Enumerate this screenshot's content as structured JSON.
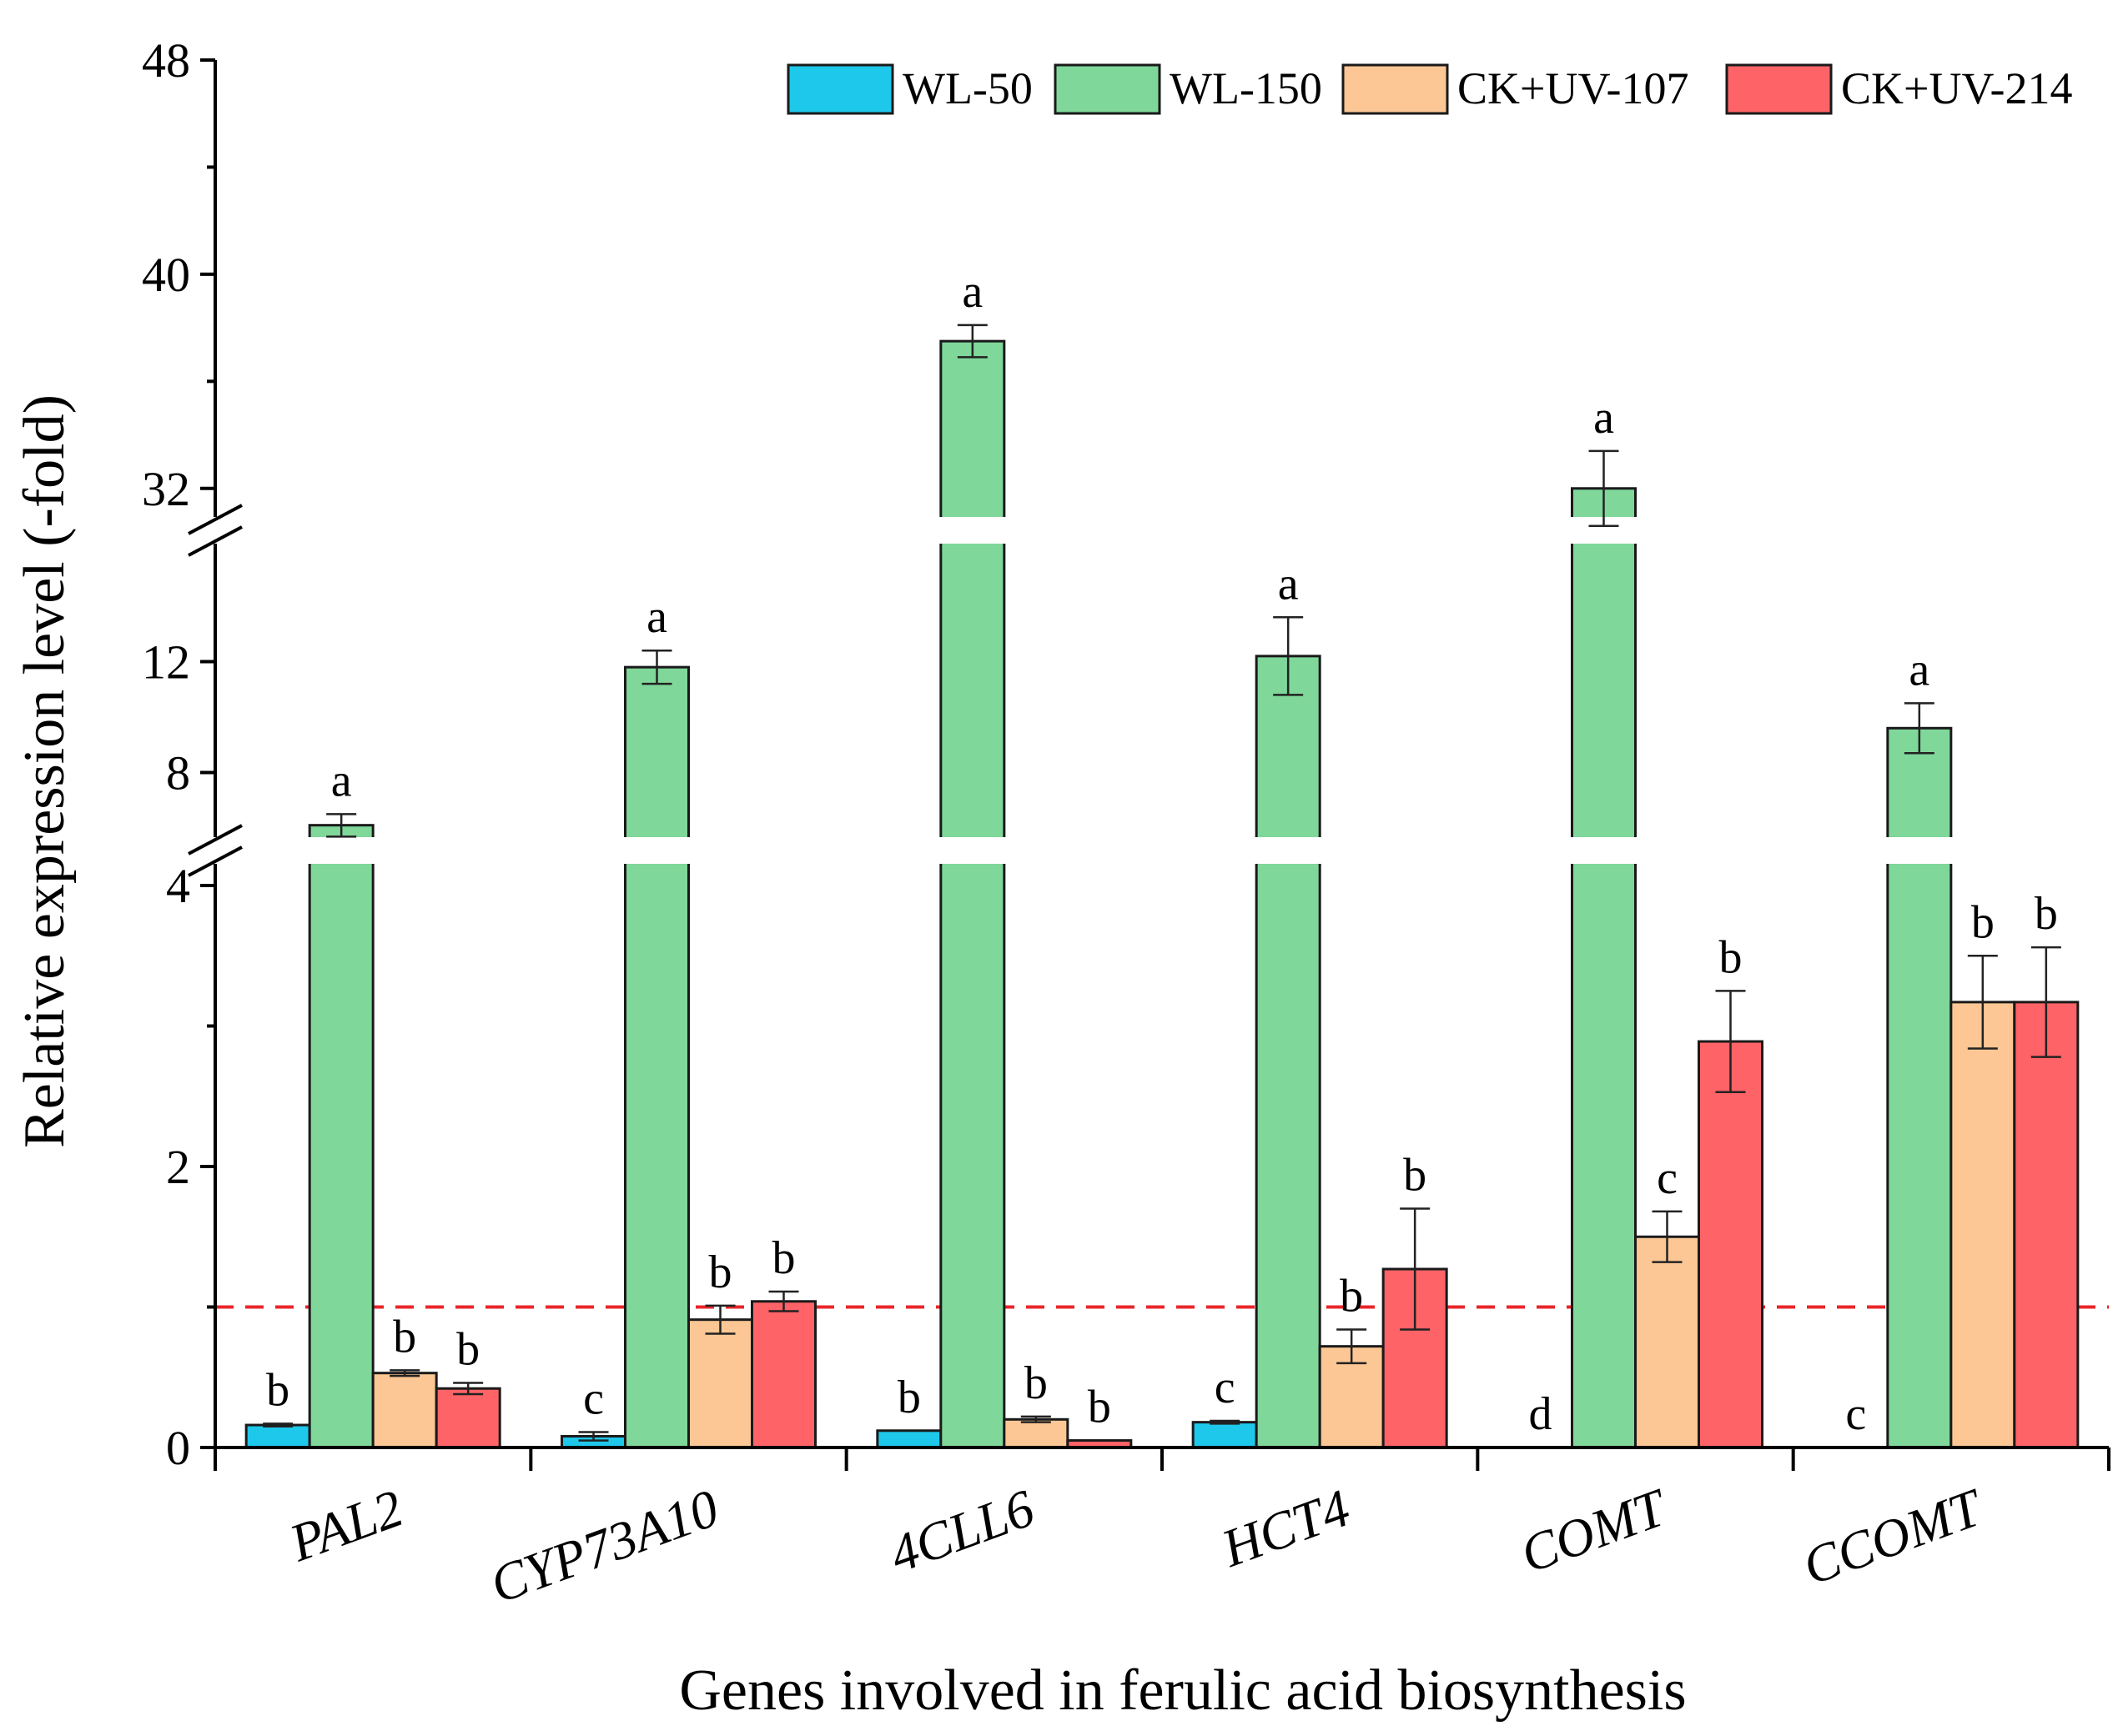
{
  "chart_data": {
    "type": "bar",
    "title": "",
    "xlabel": "Genes involved in ferulic acid biosynthesis",
    "ylabel": "Relative expression level (-fold)",
    "ylim": [
      0,
      48
    ],
    "y_axis_breaks": [
      [
        4,
        6
      ],
      [
        14,
        30
      ]
    ],
    "y_ticks": [
      "0",
      "2",
      "4",
      "8",
      "12",
      "32",
      "40",
      "48"
    ],
    "reference_line": 1,
    "legend_position": "top-right",
    "categories": [
      "PAL2",
      "CYP73A10",
      "4CLL6",
      "HCT4",
      "COMT",
      "CCOMT"
    ],
    "series": [
      {
        "name": "WL-50",
        "color": "#1ec8ea",
        "values": [
          0.16,
          0.08,
          0.12,
          0.18,
          0,
          0
        ],
        "errors": [
          0.01,
          0.03,
          0,
          0.01,
          0,
          0
        ],
        "letters": [
          "b",
          "c",
          "b",
          "c",
          "d",
          "c"
        ]
      },
      {
        "name": "WL-150",
        "color": "#7fd79a",
        "values": [
          6.1,
          11.8,
          37.5,
          12.2,
          32.0,
          9.6
        ],
        "errors": [
          0.4,
          0.6,
          0.6,
          1.4,
          1.4,
          0.9
        ],
        "letters": [
          "a",
          "a",
          "a",
          "a",
          "a",
          "a"
        ]
      },
      {
        "name": "CK+UV-107",
        "color": "#fcc794",
        "values": [
          0.53,
          0.91,
          0.2,
          0.72,
          1.5,
          3.17
        ],
        "errors": [
          0.02,
          0.1,
          0.02,
          0.12,
          0.18,
          0.33
        ],
        "letters": [
          "b",
          "b",
          "b",
          "b",
          "c",
          "b"
        ]
      },
      {
        "name": "CK+UV-214",
        "color": "#fe6367",
        "values": [
          0.42,
          1.04,
          0.05,
          1.27,
          2.89,
          3.17
        ],
        "errors": [
          0.04,
          0.07,
          0,
          0.43,
          0.36,
          0.39
        ],
        "letters": [
          "b",
          "b",
          "b",
          "b",
          "b",
          "b"
        ]
      }
    ]
  }
}
